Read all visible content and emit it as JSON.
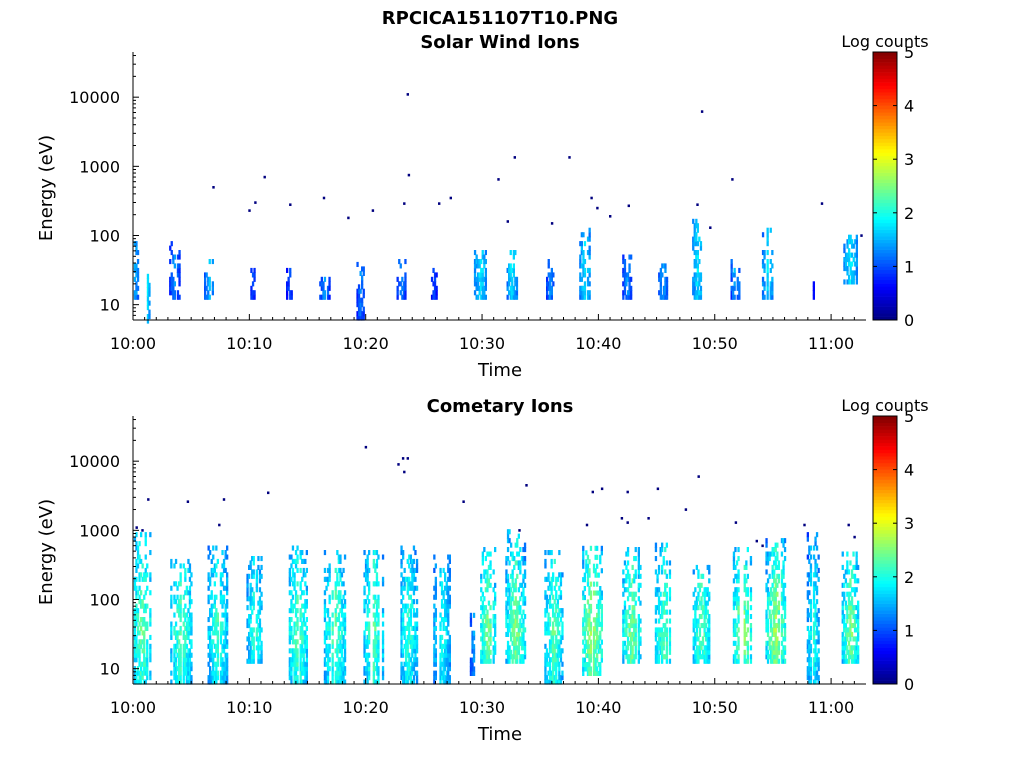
{
  "figure": {
    "title": "RPCICA151107T10.PNG",
    "colormap": [
      "#00007f",
      "#0000ff",
      "#007fff",
      "#00ffff",
      "#7fff7f",
      "#ffff00",
      "#ff7f00",
      "#ff0000",
      "#7f0000"
    ]
  },
  "chart_data": [
    {
      "type": "heatmap",
      "title": "Solar Wind Ions",
      "xlabel": "Time",
      "ylabel": "Energy (eV)",
      "colorbar_label": "Log counts",
      "xticks": [
        "10:00",
        "10:10",
        "10:20",
        "10:30",
        "10:40",
        "10:50",
        "11:00"
      ],
      "xtick_minutes": [
        0,
        10,
        20,
        30,
        40,
        50,
        60
      ],
      "xlim_minutes": [
        0,
        63
      ],
      "yscale": "log",
      "ylim": [
        6,
        45000
      ],
      "yticks": [
        10,
        100,
        1000,
        10000
      ],
      "yticklabels": [
        "10",
        "100",
        "1000",
        "10000"
      ],
      "clim": [
        0,
        5
      ],
      "cticks": [
        "0",
        "1",
        "2",
        "3",
        "4",
        "5"
      ],
      "events": [
        {
          "t": 0.1,
          "w": 0.6,
          "e": [
            12,
            80
          ],
          "lvl": [
            0.6,
            1.8
          ]
        },
        {
          "t": 1.2,
          "w": 0.3,
          "e": [
            3,
            60
          ],
          "lvl": [
            1.0,
            2.0
          ]
        },
        {
          "t": 3.5,
          "w": 0.8,
          "e": [
            12,
            80
          ],
          "lvl": [
            0.5,
            1.5
          ]
        },
        {
          "t": 6.5,
          "w": 0.8,
          "e": [
            12,
            40
          ],
          "lvl": [
            0.6,
            1.8
          ]
        },
        {
          "t": 10.2,
          "w": 0.5,
          "e": [
            12,
            30
          ],
          "lvl": [
            0.4,
            1.2
          ]
        },
        {
          "t": 13.4,
          "w": 0.5,
          "e": [
            12,
            30
          ],
          "lvl": [
            0.4,
            1.2
          ]
        },
        {
          "t": 16.4,
          "w": 0.8,
          "e": [
            12,
            25
          ],
          "lvl": [
            0.5,
            1.6
          ]
        },
        {
          "t": 19.5,
          "w": 0.6,
          "e": [
            6,
            40
          ],
          "lvl": [
            0.5,
            1.5
          ]
        },
        {
          "t": 23.0,
          "w": 0.7,
          "e": [
            12,
            40
          ],
          "lvl": [
            0.5,
            1.5
          ]
        },
        {
          "t": 25.8,
          "w": 0.4,
          "e": [
            12,
            30
          ],
          "lvl": [
            0.4,
            1.2
          ]
        },
        {
          "t": 29.8,
          "w": 1.0,
          "e": [
            12,
            60
          ],
          "lvl": [
            0.8,
            2.0
          ]
        },
        {
          "t": 32.5,
          "w": 0.8,
          "e": [
            12,
            60
          ],
          "lvl": [
            0.8,
            2.0
          ]
        },
        {
          "t": 35.8,
          "w": 0.6,
          "e": [
            12,
            40
          ],
          "lvl": [
            0.5,
            1.6
          ]
        },
        {
          "t": 38.8,
          "w": 0.9,
          "e": [
            12,
            120
          ],
          "lvl": [
            0.8,
            2.0
          ]
        },
        {
          "t": 42.4,
          "w": 0.7,
          "e": [
            12,
            50
          ],
          "lvl": [
            0.5,
            1.6
          ]
        },
        {
          "t": 45.5,
          "w": 1.0,
          "e": [
            12,
            40
          ],
          "lvl": [
            0.5,
            1.6
          ]
        },
        {
          "t": 48.5,
          "w": 0.9,
          "e": [
            12,
            180
          ],
          "lvl": [
            0.8,
            2.0
          ]
        },
        {
          "t": 51.7,
          "w": 0.7,
          "e": [
            12,
            40
          ],
          "lvl": [
            0.5,
            1.8
          ]
        },
        {
          "t": 54.5,
          "w": 0.9,
          "e": [
            12,
            120
          ],
          "lvl": [
            0.8,
            2.0
          ]
        },
        {
          "t": 58.3,
          "w": 0.3,
          "e": [
            12,
            20
          ],
          "lvl": [
            0.4,
            1.0
          ]
        },
        {
          "t": 61.6,
          "w": 1.1,
          "e": [
            20,
            100
          ],
          "lvl": [
            0.8,
            2.0
          ]
        }
      ],
      "dots": [
        [
          6.9,
          500
        ],
        [
          11.3,
          700
        ],
        [
          10.0,
          230
        ],
        [
          10.5,
          300
        ],
        [
          13.5,
          280
        ],
        [
          16.4,
          350
        ],
        [
          18.5,
          180
        ],
        [
          20.6,
          230
        ],
        [
          23.6,
          11000
        ],
        [
          23.7,
          750
        ],
        [
          23.3,
          290
        ],
        [
          26.3,
          290
        ],
        [
          27.3,
          350
        ],
        [
          31.4,
          650
        ],
        [
          32.8,
          1350
        ],
        [
          37.5,
          1350
        ],
        [
          39.4,
          350
        ],
        [
          39.9,
          250
        ],
        [
          42.6,
          270
        ],
        [
          48.5,
          280
        ],
        [
          48.9,
          6200
        ],
        [
          51.5,
          650
        ],
        [
          59.2,
          290
        ],
        [
          36.0,
          150
        ],
        [
          32.2,
          160
        ],
        [
          41.0,
          190
        ],
        [
          49.6,
          130
        ],
        [
          62.6,
          100
        ]
      ]
    },
    {
      "type": "heatmap",
      "title": "Cometary Ions",
      "xlabel": "Time",
      "ylabel": "Energy (eV)",
      "colorbar_label": "Log counts",
      "xticks": [
        "10:00",
        "10:10",
        "10:20",
        "10:30",
        "10:40",
        "10:50",
        "11:00"
      ],
      "xtick_minutes": [
        0,
        10,
        20,
        30,
        40,
        50,
        60
      ],
      "xlim_minutes": [
        0,
        63
      ],
      "yscale": "log",
      "ylim": [
        6,
        45000
      ],
      "yticks": [
        10,
        100,
        1000,
        10000
      ],
      "yticklabels": [
        "10",
        "100",
        "1000",
        "10000"
      ],
      "clim": [
        0,
        5
      ],
      "cticks": [
        "0",
        "1",
        "2",
        "3",
        "4",
        "5"
      ],
      "events": [
        {
          "t": 0.7,
          "w": 1.8,
          "e": [
            6,
            900
          ],
          "lvl": [
            1.0,
            2.6
          ]
        },
        {
          "t": 4.1,
          "w": 1.8,
          "e": [
            6,
            350
          ],
          "lvl": [
            1.0,
            2.6
          ]
        },
        {
          "t": 7.2,
          "w": 1.6,
          "e": [
            6,
            550
          ],
          "lvl": [
            1.0,
            2.4
          ]
        },
        {
          "t": 10.4,
          "w": 1.3,
          "e": [
            12,
            420
          ],
          "lvl": [
            0.9,
            2.4
          ]
        },
        {
          "t": 14.1,
          "w": 1.7,
          "e": [
            6,
            600
          ],
          "lvl": [
            1.0,
            2.6
          ]
        },
        {
          "t": 17.3,
          "w": 1.8,
          "e": [
            6,
            500
          ],
          "lvl": [
            1.0,
            2.6
          ]
        },
        {
          "t": 20.6,
          "w": 1.6,
          "e": [
            6,
            500
          ],
          "lvl": [
            1.0,
            2.6
          ]
        },
        {
          "t": 23.6,
          "w": 1.5,
          "e": [
            6,
            600
          ],
          "lvl": [
            0.9,
            2.4
          ]
        },
        {
          "t": 26.5,
          "w": 1.4,
          "e": [
            6,
            400
          ],
          "lvl": [
            0.9,
            2.2
          ]
        },
        {
          "t": 29.2,
          "w": 0.5,
          "e": [
            8,
            60
          ],
          "lvl": [
            0.6,
            1.6
          ]
        },
        {
          "t": 30.4,
          "w": 1.4,
          "e": [
            12,
            500
          ],
          "lvl": [
            1.0,
            2.8
          ]
        },
        {
          "t": 32.8,
          "w": 1.6,
          "e": [
            12,
            1000
          ],
          "lvl": [
            1.0,
            2.8
          ]
        },
        {
          "t": 36.1,
          "w": 1.5,
          "e": [
            6,
            500
          ],
          "lvl": [
            1.0,
            2.6
          ]
        },
        {
          "t": 39.4,
          "w": 1.6,
          "e": [
            8,
            550
          ],
          "lvl": [
            1.2,
            3.0
          ]
        },
        {
          "t": 42.8,
          "w": 1.5,
          "e": [
            12,
            500
          ],
          "lvl": [
            1.0,
            2.8
          ]
        },
        {
          "t": 45.6,
          "w": 1.5,
          "e": [
            12,
            600
          ],
          "lvl": [
            1.0,
            2.6
          ]
        },
        {
          "t": 48.8,
          "w": 1.4,
          "e": [
            12,
            300
          ],
          "lvl": [
            1.0,
            2.6
          ]
        },
        {
          "t": 52.3,
          "w": 1.5,
          "e": [
            12,
            500
          ],
          "lvl": [
            1.0,
            3.0
          ]
        },
        {
          "t": 55.2,
          "w": 1.7,
          "e": [
            12,
            700
          ],
          "lvl": [
            1.0,
            3.0
          ]
        },
        {
          "t": 58.4,
          "w": 1.0,
          "e": [
            6,
            900
          ],
          "lvl": [
            0.8,
            2.4
          ]
        },
        {
          "t": 61.6,
          "w": 1.4,
          "e": [
            12,
            450
          ],
          "lvl": [
            1.0,
            2.8
          ]
        }
      ],
      "dots": [
        [
          0.3,
          1100
        ],
        [
          0.8,
          1000
        ],
        [
          1.3,
          2800
        ],
        [
          4.7,
          2600
        ],
        [
          7.4,
          1200
        ],
        [
          7.8,
          2800
        ],
        [
          11.6,
          3500
        ],
        [
          20.0,
          16000
        ],
        [
          22.8,
          9000
        ],
        [
          23.2,
          11000
        ],
        [
          23.6,
          11000
        ],
        [
          23.3,
          7000
        ],
        [
          28.4,
          2600
        ],
        [
          33.2,
          1000
        ],
        [
          33.8,
          4500
        ],
        [
          39.5,
          3600
        ],
        [
          39.0,
          1200
        ],
        [
          40.3,
          4000
        ],
        [
          42.5,
          3600
        ],
        [
          42.0,
          1500
        ],
        [
          42.5,
          1300
        ],
        [
          44.3,
          1500
        ],
        [
          45.1,
          4000
        ],
        [
          47.5,
          2000
        ],
        [
          48.6,
          6000
        ],
        [
          51.8,
          1300
        ],
        [
          53.6,
          700
        ],
        [
          54.1,
          600
        ],
        [
          57.7,
          1200
        ],
        [
          61.5,
          1200
        ],
        [
          62.0,
          800
        ]
      ]
    }
  ]
}
